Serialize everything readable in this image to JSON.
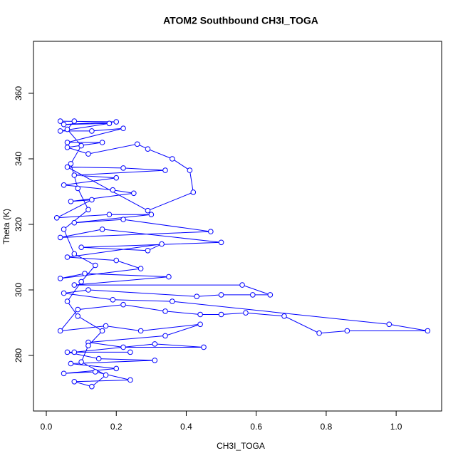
{
  "chart_data": {
    "type": "line",
    "markers": "open-circle",
    "title": "ATOM2 Southbound CH3I_TOGA",
    "x_label": "CH3I_TOGA",
    "y_label": "Theta (K)",
    "color": "#0000ff",
    "xlim": [
      -0.0367,
      1.13
    ],
    "ylim": [
      263.04,
      375.87
    ],
    "xticks": [
      {
        "value": 0,
        "label": "0.0"
      },
      0.2,
      0.4,
      0.6,
      0.8,
      {
        "value": 1,
        "label": "1.0"
      }
    ],
    "yticks": [
      280,
      300,
      320,
      340,
      360
    ],
    "x": [
      0.04,
      0.2,
      0.05,
      0.18,
      0.04,
      0.13,
      0.22,
      0.06,
      0.16,
      0.06,
      0.12,
      0.26,
      0.29,
      0.36,
      0.41,
      0.42,
      0.29,
      0.06,
      0.22,
      0.34,
      0.08,
      0.2,
      0.05,
      0.19,
      0.25,
      0.07,
      0.13,
      0.03,
      0.18,
      0.3,
      0.08,
      0.22,
      0.47,
      0.04,
      0.16,
      0.5,
      0.1,
      0.29,
      0.33,
      0.06,
      0.2,
      0.27,
      0.04,
      0.11,
      0.35,
      0.08,
      0.56,
      0.64,
      0.59,
      0.5,
      0.43,
      0.12,
      0.05,
      0.19,
      0.36,
      0.98,
      1.09,
      0.86,
      0.78,
      0.68,
      0.57,
      0.5,
      0.44,
      0.34,
      0.22,
      0.09,
      0.04,
      0.17,
      0.27,
      0.44,
      0.34,
      0.12,
      0.22,
      0.45,
      0.31,
      0.08,
      0.24,
      0.06,
      0.15,
      0.31,
      0.07,
      0.2,
      0.05,
      0.14,
      0.24,
      0.08,
      0.13,
      0.17,
      0.1,
      0.12,
      0.16,
      0.09,
      0.06,
      0.1,
      0.14,
      0.08,
      0.05,
      0.12,
      0.09,
      0.07,
      0.1,
      0.06,
      0.08
    ],
    "values": [
      351.5,
      351.3,
      350.5,
      350.8,
      348.5,
      348.5,
      349.3,
      345.0,
      345.0,
      343.5,
      341.5,
      344.5,
      343.0,
      340.0,
      336.5,
      329.8,
      324.2,
      337.5,
      337.2,
      336.5,
      335.0,
      334.2,
      332.0,
      330.5,
      329.5,
      327.0,
      327.5,
      322.0,
      323.0,
      323.0,
      320.5,
      321.5,
      317.8,
      316.0,
      318.5,
      314.5,
      313.0,
      312.0,
      314.0,
      310.0,
      309.0,
      306.5,
      303.5,
      305.0,
      304.0,
      301.5,
      301.5,
      298.5,
      298.5,
      298.5,
      298.0,
      300.0,
      299.0,
      297.0,
      296.5,
      289.5,
      287.5,
      287.5,
      286.8,
      292.0,
      293.0,
      292.5,
      292.5,
      293.5,
      295.5,
      294.0,
      287.5,
      289.0,
      287.5,
      289.5,
      286.0,
      284.0,
      282.5,
      282.5,
      283.5,
      281.0,
      281.0,
      281.0,
      279.0,
      278.5,
      277.5,
      276.0,
      274.5,
      275.0,
      272.5,
      272.0,
      270.5,
      274.0,
      278.0,
      283.0,
      287.5,
      292.0,
      296.5,
      302.5,
      307.5,
      311.0,
      318.5,
      324.5,
      331.0,
      338.5,
      344.0,
      349.0,
      351.5
    ]
  }
}
